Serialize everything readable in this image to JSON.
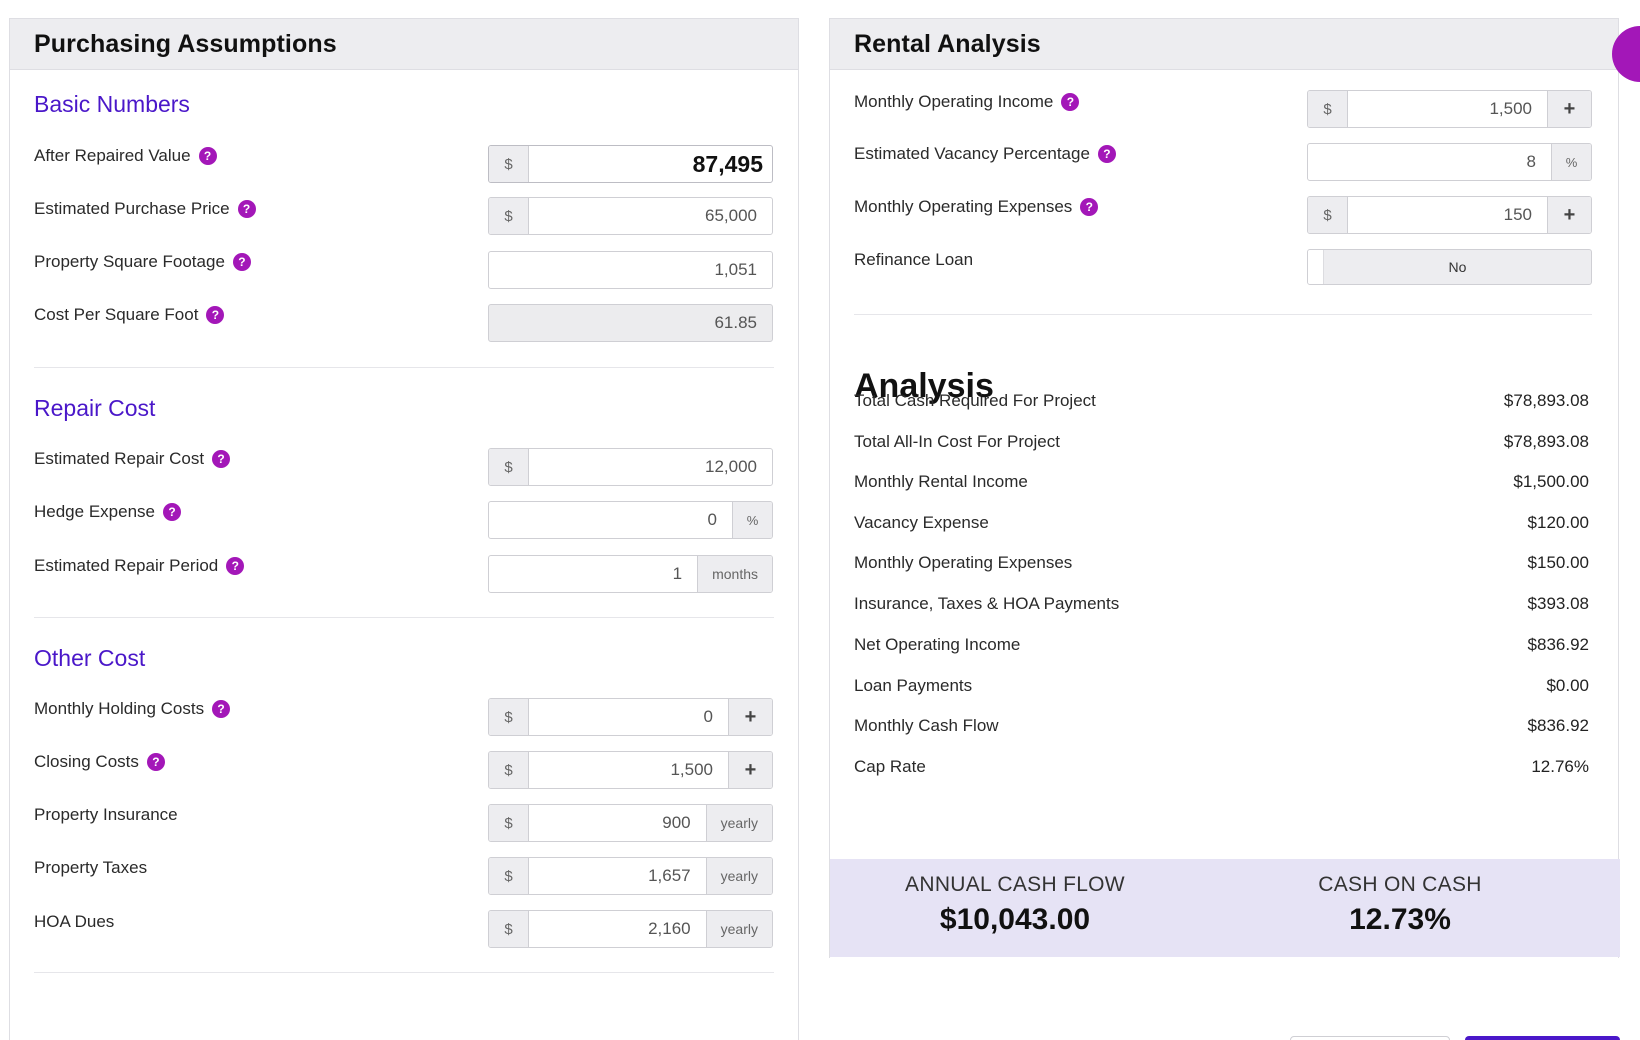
{
  "left": {
    "title": "Purchasing Assumptions",
    "basic": {
      "title": "Basic Numbers",
      "arv": {
        "label": "After Repaired Value",
        "prefix": "$",
        "value": "87,495"
      },
      "purchase": {
        "label": "Estimated Purchase Price",
        "prefix": "$",
        "value": "65,000"
      },
      "sqft": {
        "label": "Property Square Footage",
        "value": "1,051"
      },
      "cpsf": {
        "label": "Cost Per Square Foot",
        "value": "61.85"
      }
    },
    "repair": {
      "title": "Repair Cost",
      "cost": {
        "label": "Estimated Repair Cost",
        "prefix": "$",
        "value": "12,000"
      },
      "hedge": {
        "label": "Hedge Expense",
        "value": "0",
        "suffix": "%"
      },
      "period": {
        "label": "Estimated Repair Period",
        "value": "1",
        "suffix": "months"
      }
    },
    "other": {
      "title": "Other Cost",
      "holding": {
        "label": "Monthly Holding Costs",
        "prefix": "$",
        "value": "0"
      },
      "closing": {
        "label": "Closing Costs",
        "prefix": "$",
        "value": "1,500"
      },
      "insurance": {
        "label": "Property Insurance",
        "prefix": "$",
        "value": "900",
        "suffix": "yearly"
      },
      "taxes": {
        "label": "Property Taxes",
        "prefix": "$",
        "value": "1,657",
        "suffix": "yearly"
      },
      "hoa": {
        "label": "HOA Dues",
        "prefix": "$",
        "value": "2,160",
        "suffix": "yearly"
      }
    }
  },
  "right": {
    "title": "Rental Analysis",
    "income": {
      "label": "Monthly Operating Income",
      "prefix": "$",
      "value": "1,500"
    },
    "vacancy": {
      "label": "Estimated Vacancy Percentage",
      "value": "8",
      "suffix": "%"
    },
    "expenses": {
      "label": "Monthly Operating Expenses",
      "prefix": "$",
      "value": "150"
    },
    "refinance": {
      "label": "Refinance Loan",
      "value": "No"
    },
    "analysis": {
      "title": "Analysis",
      "rows": [
        {
          "label": "Total Cash Required For Project",
          "value": "$78,893.08"
        },
        {
          "label": "Total All-In Cost For Project",
          "value": "$78,893.08"
        },
        {
          "label": "Monthly Rental Income",
          "value": "$1,500.00"
        },
        {
          "label": "Vacancy Expense",
          "value": "$120.00"
        },
        {
          "label": "Monthly Operating Expenses",
          "value": "$150.00"
        },
        {
          "label": "Insurance, Taxes & HOA Payments",
          "value": "$393.08"
        },
        {
          "label": "Net Operating Income",
          "value": "$836.92"
        },
        {
          "label": "Loan Payments",
          "value": "$0.00"
        },
        {
          "label": "Monthly Cash Flow",
          "value": "$836.92"
        },
        {
          "label": "Cap Rate",
          "value": "12.76%"
        }
      ]
    },
    "summary": {
      "annual_label": "ANNUAL CASH FLOW",
      "annual_value": "$10,043.00",
      "coc_label": "CASH ON CASH",
      "coc_value": "12.73%"
    }
  },
  "icons": {
    "help": "?",
    "plus": "+"
  },
  "colors": {
    "accent": "#4a17c9",
    "help": "#a317b8",
    "summary_bg": "#e6e3f5"
  }
}
